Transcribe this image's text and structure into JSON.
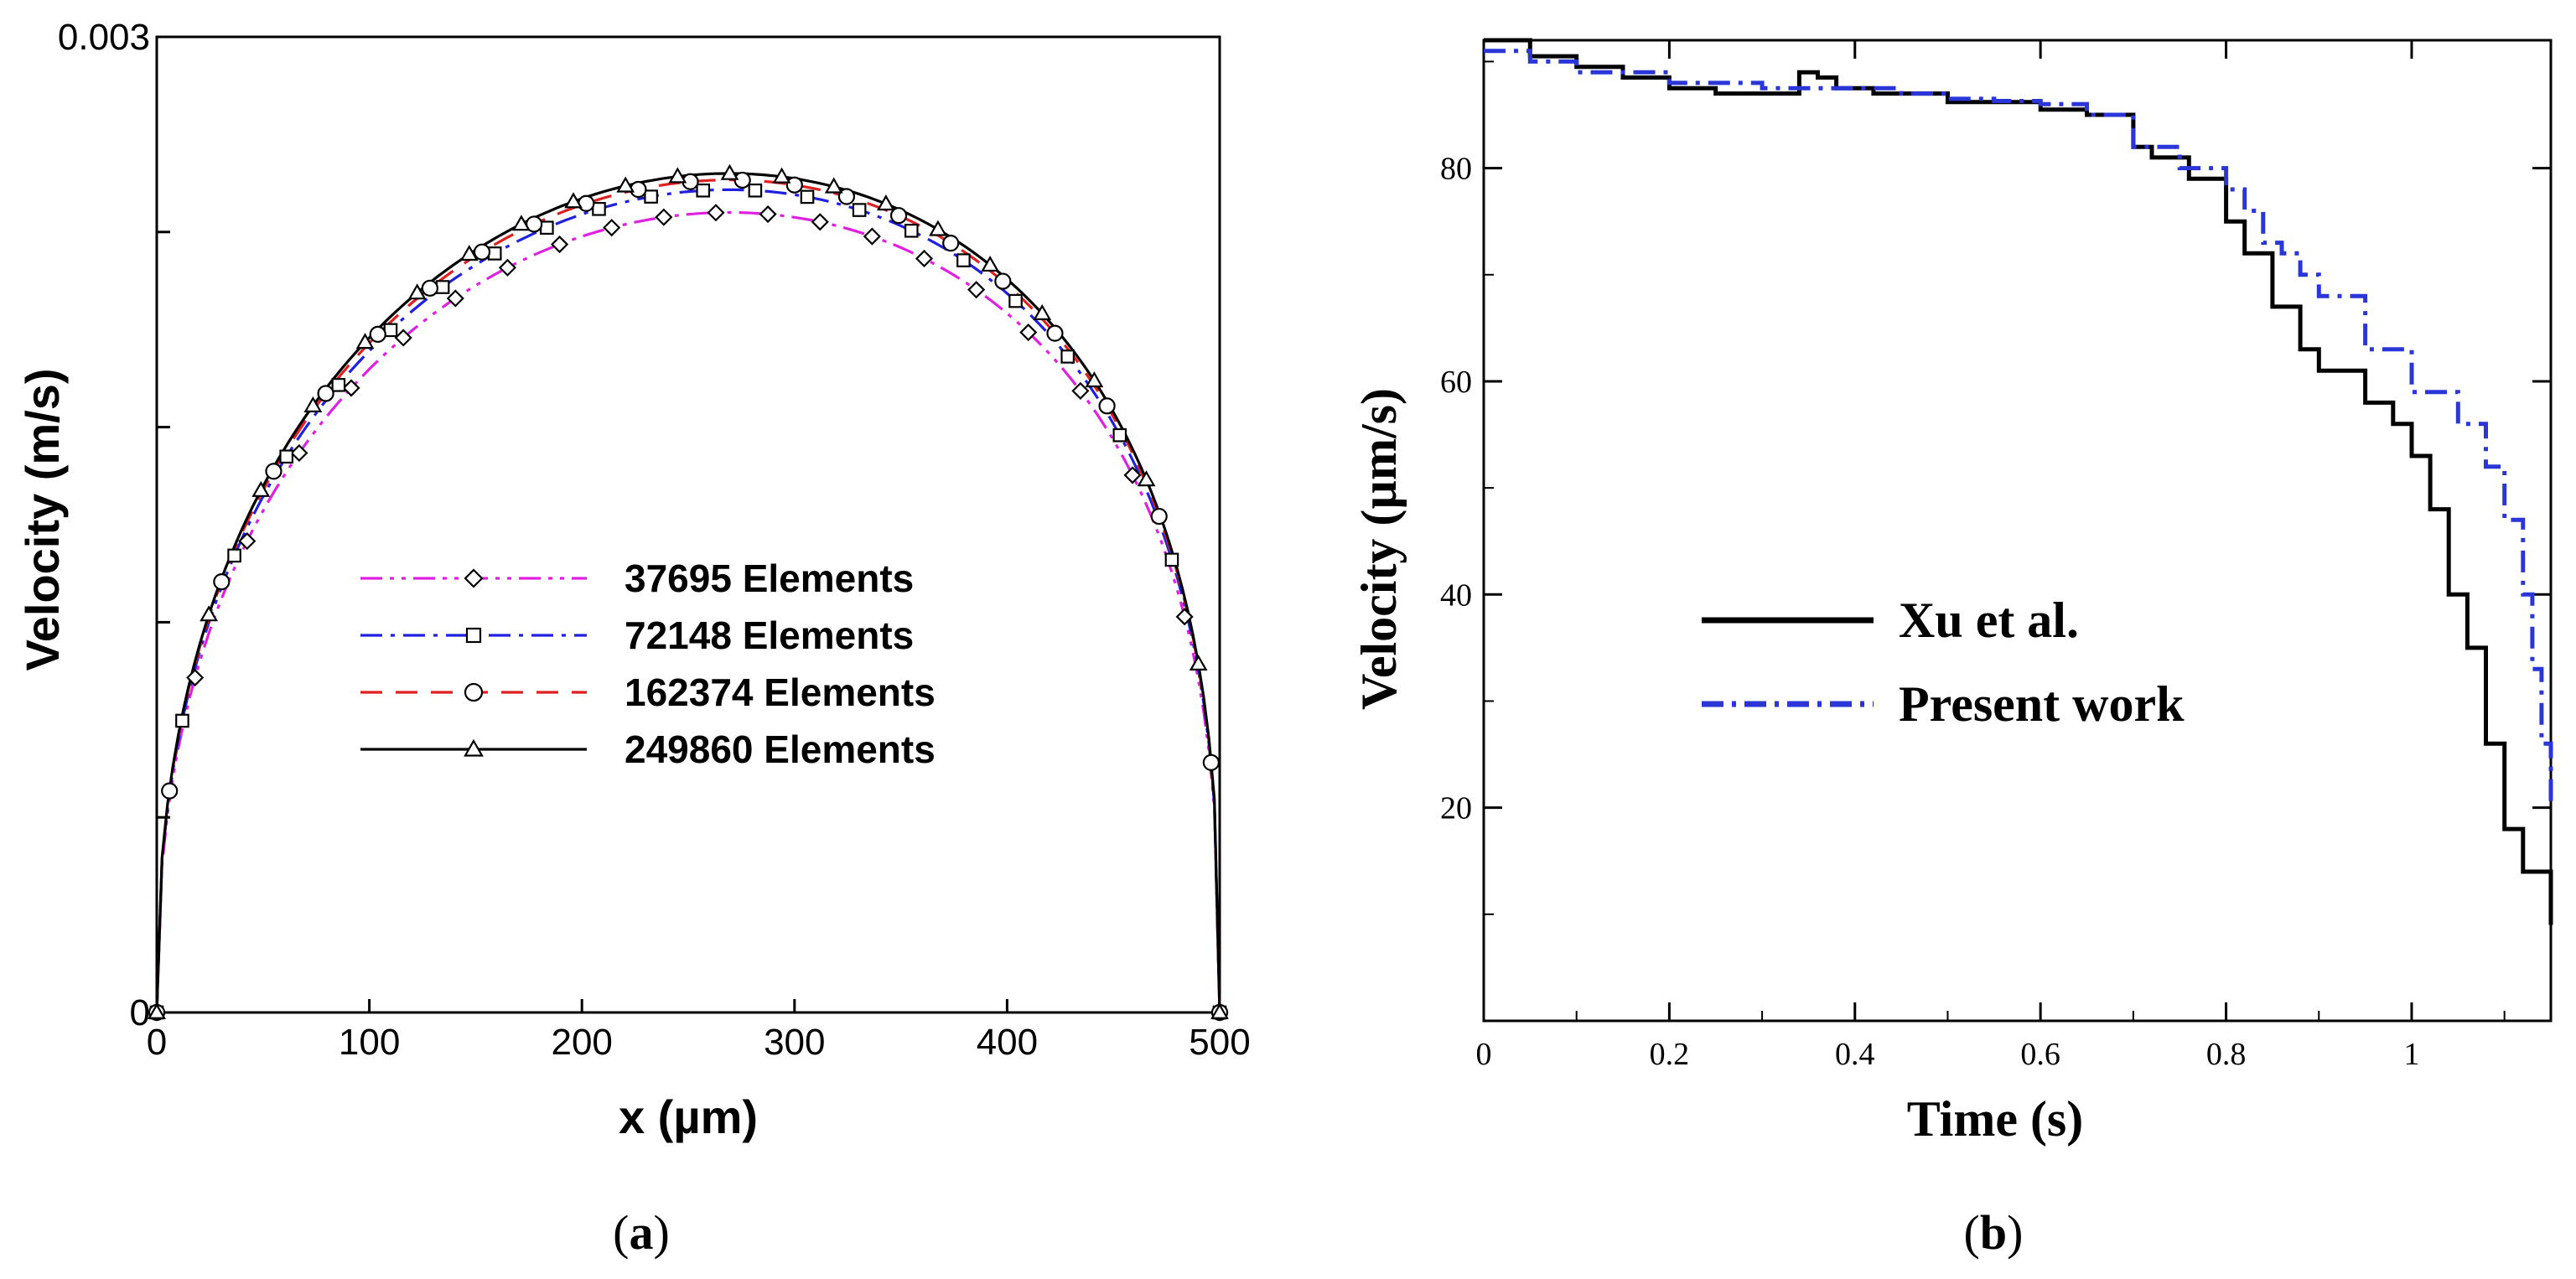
{
  "chart_data": [
    {
      "type": "line",
      "panel": "a",
      "caption_open": "(",
      "caption_letter": "a",
      "caption_close": ")",
      "xlabel": "x (µm)",
      "ylabel": "Velocity (m/s)",
      "xlim": [
        0,
        500
      ],
      "ylim": [
        0,
        0.003
      ],
      "xticks": [
        0,
        100,
        200,
        300,
        400,
        500
      ],
      "xtick_labels": [
        "0",
        "100",
        "200",
        "300",
        "400",
        "500"
      ],
      "yticks": [
        0,
        0.0006,
        0.0012,
        0.0018,
        0.0024,
        0.003
      ],
      "ytick_labels": [
        "0",
        "",
        "",
        "",
        "",
        "0.003"
      ],
      "legend_position": "center",
      "series": [
        {
          "name": "37695 Elements",
          "color": "#e020e0",
          "dash": "dash-dot-dot",
          "marker": "diamond",
          "peak": 0.00246
        },
        {
          "name": "72148 Elements",
          "color": "#2020e0",
          "dash": "dash-dot",
          "marker": "square",
          "peak": 0.00253
        },
        {
          "name": "162374 Elements",
          "color": "#e02020",
          "dash": "dashed",
          "marker": "circle",
          "peak": 0.00256
        },
        {
          "name": "249860 Elements",
          "color": "#000000",
          "dash": "solid",
          "marker": "triangle",
          "peak": 0.00258
        }
      ]
    },
    {
      "type": "line",
      "panel": "b",
      "caption_open": "(",
      "caption_letter": "b",
      "caption_close": ")",
      "xlabel": "Time (s)",
      "ylabel": "Velocity (µm/s)",
      "xlim": [
        0,
        1.15
      ],
      "ylim": [
        0,
        92
      ],
      "xticks": [
        0,
        0.2,
        0.4,
        0.6,
        0.8,
        1
      ],
      "xtick_labels": [
        "0",
        "0.2",
        "0.4",
        "0.6",
        "0.8",
        "1"
      ],
      "yticks": [
        20,
        40,
        60,
        80
      ],
      "ytick_labels": [
        "20",
        "40",
        "60",
        "80"
      ],
      "legend_position": "center-left",
      "series": [
        {
          "name": "Xu et al.",
          "color": "#000000",
          "dash": "solid",
          "x": [
            0,
            0.05,
            0.1,
            0.15,
            0.2,
            0.25,
            0.3,
            0.34,
            0.35,
            0.36,
            0.38,
            0.42,
            0.5,
            0.6,
            0.65,
            0.7,
            0.72,
            0.76,
            0.8,
            0.82,
            0.85,
            0.88,
            0.9,
            0.95,
            0.98,
            1.0,
            1.02,
            1.04,
            1.06,
            1.08,
            1.1,
            1.12,
            1.15
          ],
          "values": [
            92,
            90.5,
            89.5,
            88.5,
            87.5,
            87,
            87,
            89,
            89,
            88.5,
            87.5,
            87,
            86.2,
            85.5,
            85,
            82,
            81,
            79,
            75,
            72,
            67,
            63,
            61,
            58,
            56,
            53,
            48,
            40,
            35,
            26,
            18,
            14,
            9
          ]
        },
        {
          "name": "Present work",
          "color": "#2a36d8",
          "dash": "dash-dot",
          "x": [
            0,
            0.05,
            0.1,
            0.2,
            0.3,
            0.35,
            0.38,
            0.4,
            0.45,
            0.5,
            0.55,
            0.6,
            0.65,
            0.7,
            0.72,
            0.75,
            0.8,
            0.82,
            0.84,
            0.86,
            0.88,
            0.9,
            0.95,
            1.0,
            1.05,
            1.08,
            1.1,
            1.12,
            1.13,
            1.14,
            1.15
          ],
          "values": [
            91,
            90,
            89,
            88,
            87.5,
            87.5,
            87.5,
            87.5,
            87,
            86.5,
            86.3,
            86,
            85,
            82,
            82,
            80,
            78,
            76,
            73,
            72,
            70,
            68,
            63,
            59,
            56,
            52,
            47,
            40,
            33,
            26,
            20
          ]
        }
      ]
    }
  ]
}
